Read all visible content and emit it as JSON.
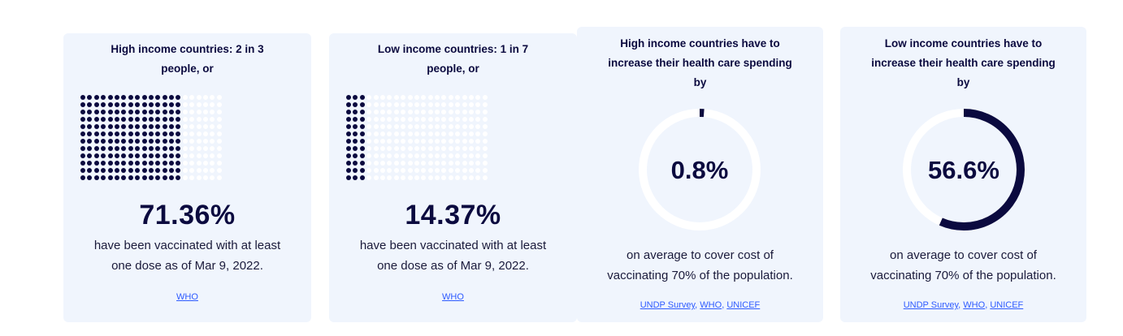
{
  "cards": [
    {
      "title_line1": "High income countries: 2 in 3",
      "title_line2": "people, or",
      "fraction": 0.7136,
      "value": "71.36%",
      "desc_line1": "have been vaccinated with at least",
      "desc_line2": "one dose as of Mar 9, 2022.",
      "source": "WHO"
    },
    {
      "title_line1": "Low income countries: 1 in 7",
      "title_line2": "people, or",
      "fraction": 0.1437,
      "value": "14.37%",
      "desc_line1": "have been vaccinated with at least",
      "desc_line2": "one dose as of Mar 9, 2022.",
      "source": "WHO"
    },
    {
      "title_line1": "High income countries have to",
      "title_line2": "increase their health care spending",
      "title_line3": "by",
      "fraction": 0.008,
      "value": "0.8%",
      "desc_line1": "on average to cover cost of",
      "desc_line2": "vaccinating 70% of the population.",
      "source_a": "UNDP Survey",
      "source_b": "WHO",
      "source_c": "UNICEF",
      "sep": ","
    },
    {
      "title_line1": "Low income countries have to",
      "title_line2": "increase their health care spending",
      "title_line3": "by",
      "fraction": 0.566,
      "value": "56.6%",
      "desc_line1": "on average to cover cost of",
      "desc_line2": "vaccinating 70% of the population.",
      "source_a": "UNDP Survey",
      "source_b": "WHO",
      "source_c": "UNICEF",
      "sep": ","
    }
  ],
  "colors": {
    "accent": "#0b0a3f",
    "card_bg": "#f0f5fd",
    "link": "#2e5bff",
    "track": "#ffffff"
  }
}
